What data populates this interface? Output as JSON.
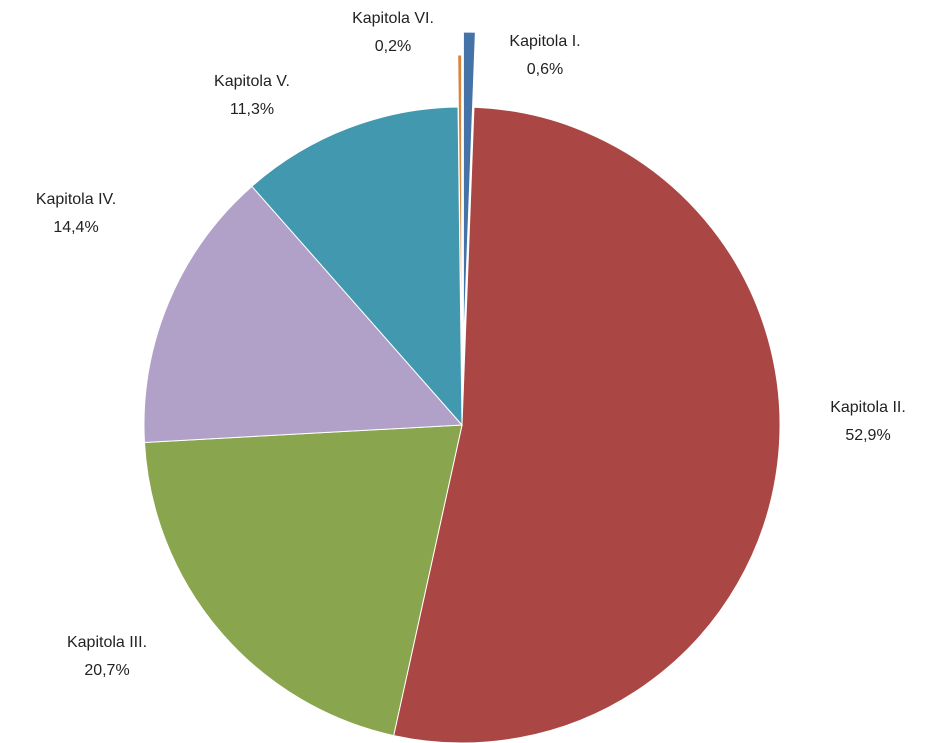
{
  "chart_data": {
    "type": "pie",
    "categories": [
      "Kapitola I.",
      "Kapitola II.",
      "Kapitola III.",
      "Kapitola IV.",
      "Kapitola V.",
      "Kapitola VI."
    ],
    "values": [
      0.6,
      52.9,
      20.7,
      14.4,
      11.3,
      0.2
    ],
    "value_labels": [
      "0,6%",
      "52,9%",
      "20,7%",
      "14,4%",
      "11,3%",
      "0,2%"
    ],
    "colors": [
      "#4572a7",
      "#aa4643",
      "#89a54e",
      "#b1a0c7",
      "#4198af",
      "#db843d"
    ]
  }
}
